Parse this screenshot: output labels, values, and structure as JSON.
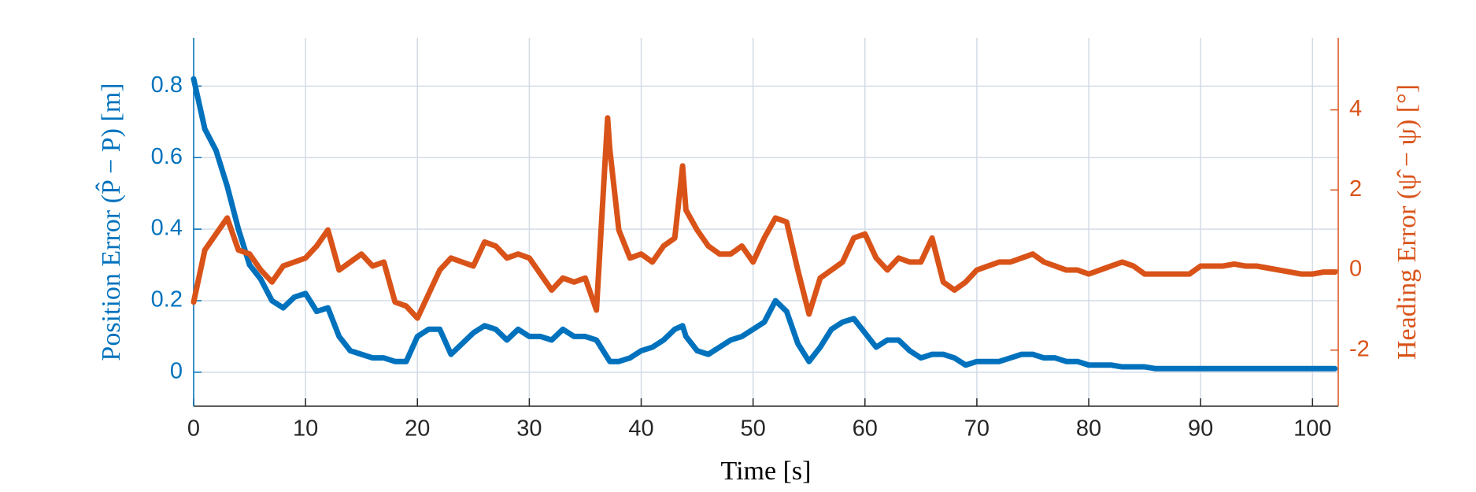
{
  "chart_data": {
    "type": "line",
    "xlabel": "Time [s]",
    "ylabel": "Position Error (P̂ − P) [m]",
    "y2label": "Heading Error (ψ̂ − ψ) [°]",
    "x": [
      0,
      1,
      2,
      3,
      4,
      5,
      6,
      7,
      8,
      9,
      10,
      11,
      12,
      13,
      14,
      15,
      16,
      17,
      18,
      19,
      20,
      21,
      22,
      23,
      24,
      25,
      26,
      27,
      28,
      29,
      30,
      31,
      32,
      33,
      34,
      35,
      36,
      37,
      37.2,
      38,
      39,
      40,
      41,
      42,
      43,
      43.7,
      44,
      45,
      46,
      47,
      48,
      49,
      50,
      51,
      52,
      53,
      54,
      55,
      56,
      57,
      58,
      59,
      60,
      61,
      62,
      63,
      64,
      65,
      66,
      67,
      68,
      69,
      70,
      71,
      72,
      73,
      74,
      75,
      76,
      77,
      78,
      79,
      80,
      81,
      82,
      83,
      84,
      85,
      86,
      87,
      88,
      89,
      90,
      91,
      92,
      93,
      94,
      95,
      96,
      97,
      98,
      99,
      100,
      101,
      102
    ],
    "series": [
      {
        "color": "#0072BD",
        "axis": "y",
        "values": [
          0.82,
          0.68,
          0.62,
          0.52,
          0.4,
          0.3,
          0.26,
          0.2,
          0.18,
          0.21,
          0.22,
          0.17,
          0.18,
          0.1,
          0.06,
          0.05,
          0.04,
          0.04,
          0.03,
          0.03,
          0.1,
          0.12,
          0.12,
          0.05,
          0.08,
          0.11,
          0.13,
          0.12,
          0.09,
          0.12,
          0.1,
          0.1,
          0.09,
          0.12,
          0.1,
          0.1,
          0.09,
          0.04,
          0.03,
          0.03,
          0.04,
          0.06,
          0.07,
          0.09,
          0.12,
          0.13,
          0.1,
          0.06,
          0.05,
          0.07,
          0.09,
          0.1,
          0.12,
          0.14,
          0.2,
          0.17,
          0.08,
          0.03,
          0.07,
          0.12,
          0.14,
          0.15,
          0.11,
          0.07,
          0.09,
          0.09,
          0.06,
          0.04,
          0.05,
          0.05,
          0.04,
          0.02,
          0.03,
          0.03,
          0.03,
          0.04,
          0.05,
          0.05,
          0.04,
          0.04,
          0.03,
          0.03,
          0.02,
          0.02,
          0.02,
          0.015,
          0.015,
          0.015,
          0.01,
          0.01,
          0.01,
          0.01,
          0.01,
          0.01,
          0.01,
          0.01,
          0.01,
          0.01,
          0.01,
          0.01,
          0.01,
          0.01,
          0.01,
          0.01,
          0.01
        ]
      },
      {
        "color": "#D95319",
        "axis": "y2",
        "values": [
          -0.8,
          0.5,
          0.9,
          1.3,
          0.5,
          0.4,
          0.0,
          -0.3,
          0.1,
          0.2,
          0.3,
          0.6,
          1.0,
          0.0,
          0.2,
          0.4,
          0.1,
          0.2,
          -0.8,
          -0.9,
          -1.2,
          -0.6,
          0.0,
          0.3,
          0.2,
          0.1,
          0.7,
          0.6,
          0.3,
          0.4,
          0.3,
          -0.1,
          -0.5,
          -0.2,
          -0.3,
          -0.2,
          -1.0,
          3.8,
          3.0,
          1.0,
          0.3,
          0.4,
          0.2,
          0.6,
          0.8,
          2.6,
          1.5,
          1.0,
          0.6,
          0.4,
          0.4,
          0.6,
          0.2,
          0.8,
          1.3,
          1.2,
          0.0,
          -1.1,
          -0.2,
          0.0,
          0.2,
          0.8,
          0.9,
          0.3,
          0.0,
          0.3,
          0.2,
          0.2,
          0.8,
          -0.3,
          -0.5,
          -0.3,
          0.0,
          0.1,
          0.2,
          0.2,
          0.3,
          0.4,
          0.2,
          0.1,
          0.0,
          0.0,
          -0.1,
          0.0,
          0.1,
          0.2,
          0.1,
          -0.1,
          -0.1,
          -0.1,
          -0.1,
          -0.1,
          0.1,
          0.1,
          0.1,
          0.15,
          0.1,
          0.1,
          0.05,
          0.0,
          -0.05,
          -0.1,
          -0.1,
          -0.05,
          -0.05
        ]
      }
    ],
    "xlim": [
      0,
      102.3
    ],
    "xticks": [
      0,
      10,
      20,
      30,
      40,
      50,
      60,
      70,
      80,
      90,
      100
    ],
    "ylim": [
      -0.095,
      0.935
    ],
    "yticks": [
      0,
      0.2,
      0.4,
      0.6,
      0.8
    ],
    "y2lim": [
      -3.4,
      5.8
    ],
    "y2ticks": [
      -2,
      0,
      2,
      4
    ],
    "grid": true
  }
}
